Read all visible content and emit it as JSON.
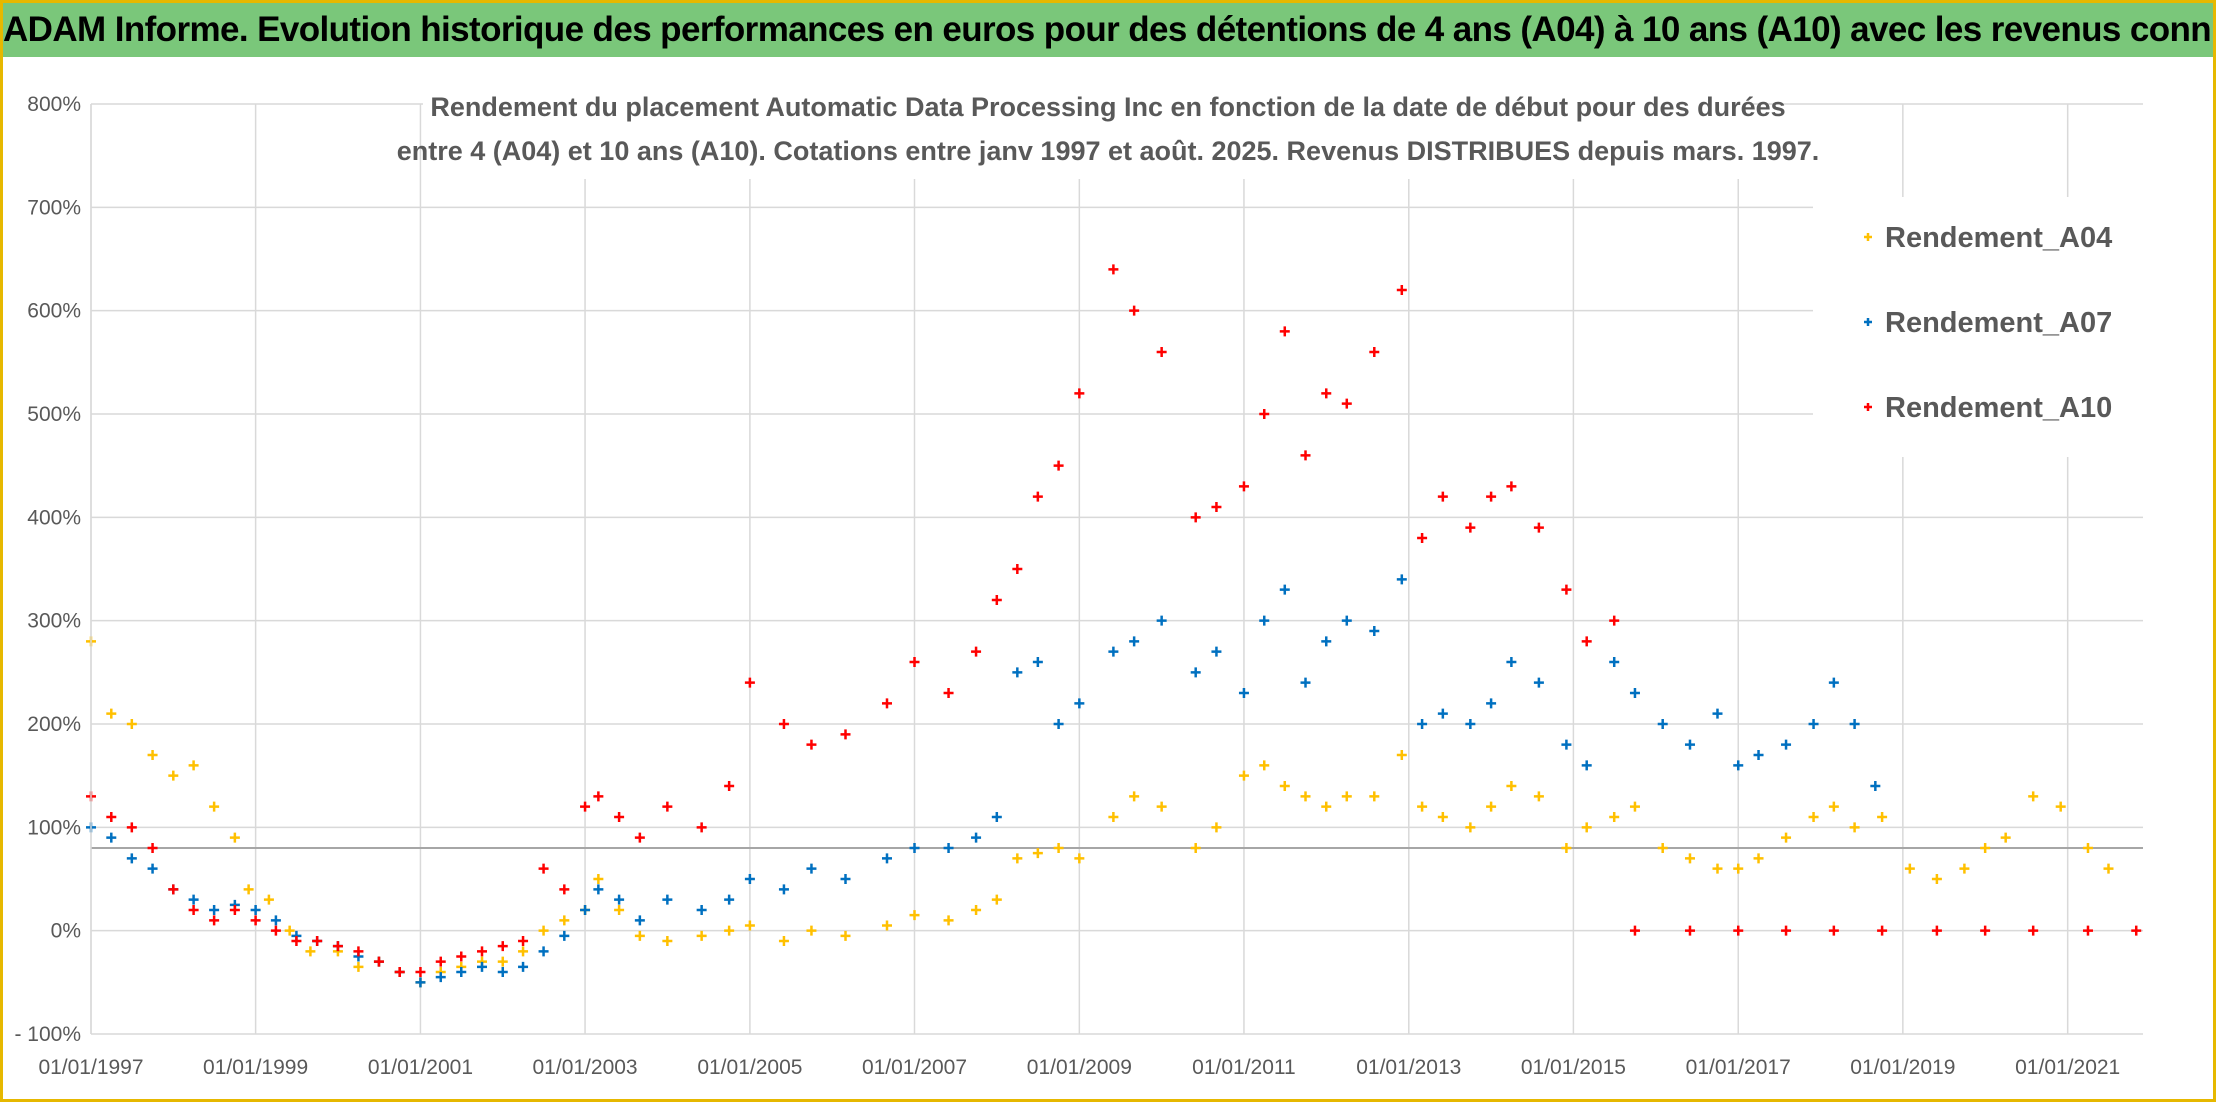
{
  "banner": {
    "title": "ADAM Informe. Evolution historique des performances en euros pour des détentions de 4 ans (A04) à 10 ans (A10) avec les revenus connus distribués"
  },
  "chart_data": {
    "type": "scatter",
    "title_lines": [
      "Rendement du placement Automatic Data Processing Inc en fonction de la date de début pour des durées",
      "entre 4 (A04) et 10 ans (A10). Cotations entre janv 1997 et août. 2025. Revenus DISTRIBUES depuis mars. 1997."
    ],
    "xlabel": "",
    "ylabel": "",
    "x_axis": {
      "type": "date",
      "min": "1997-01-01",
      "max": "2021-12-01",
      "ticks": [
        "01/01/1997",
        "01/01/1999",
        "01/01/2001",
        "01/01/2003",
        "01/01/2005",
        "01/01/2007",
        "01/01/2009",
        "01/01/2011",
        "01/01/2013",
        "01/01/2015",
        "01/01/2017",
        "01/01/2019",
        "01/01/2021"
      ]
    },
    "y_axis": {
      "min": -100,
      "max": 800,
      "unit": "%",
      "ticks": [
        -100,
        0,
        100,
        200,
        300,
        400,
        500,
        600,
        700,
        800
      ],
      "tick_labels": [
        "- 100%",
        "0%",
        "100%",
        "200%",
        "300%",
        "400%",
        "500%",
        "600%",
        "700%",
        "800%"
      ]
    },
    "reference_line": {
      "y": 80,
      "color": "#a6a6a6"
    },
    "grid": true,
    "legend_position": "top-right",
    "marker": "plus",
    "series": [
      {
        "name": "Rendement_A04",
        "color": "#ffc000",
        "points": [
          [
            "1997-01-01",
            280
          ],
          [
            "1997-04-01",
            210
          ],
          [
            "1997-07-01",
            200
          ],
          [
            "1997-10-01",
            170
          ],
          [
            "1998-01-01",
            150
          ],
          [
            "1998-04-01",
            160
          ],
          [
            "1998-07-01",
            120
          ],
          [
            "1998-10-01",
            90
          ],
          [
            "1998-12-01",
            40
          ],
          [
            "1999-03-01",
            30
          ],
          [
            "1999-06-01",
            0
          ],
          [
            "1999-09-01",
            -20
          ],
          [
            "2000-01-01",
            -20
          ],
          [
            "2000-04-01",
            -35
          ],
          [
            "2000-07-01",
            -30
          ],
          [
            "2000-10-01",
            -40
          ],
          [
            "2001-01-01",
            -50
          ],
          [
            "2001-04-01",
            -40
          ],
          [
            "2001-07-01",
            -35
          ],
          [
            "2001-10-01",
            -30
          ],
          [
            "2002-01-01",
            -30
          ],
          [
            "2002-04-01",
            -20
          ],
          [
            "2002-07-01",
            0
          ],
          [
            "2002-10-01",
            10
          ],
          [
            "2003-01-01",
            20
          ],
          [
            "2003-03-01",
            50
          ],
          [
            "2003-06-01",
            20
          ],
          [
            "2003-09-01",
            -5
          ],
          [
            "2004-01-01",
            -10
          ],
          [
            "2004-06-01",
            -5
          ],
          [
            "2004-10-01",
            0
          ],
          [
            "2005-01-01",
            5
          ],
          [
            "2005-06-01",
            -10
          ],
          [
            "2005-10-01",
            0
          ],
          [
            "2006-03-01",
            -5
          ],
          [
            "2006-09-01",
            5
          ],
          [
            "2007-01-01",
            15
          ],
          [
            "2007-06-01",
            10
          ],
          [
            "2007-10-01",
            20
          ],
          [
            "2008-01-01",
            30
          ],
          [
            "2008-04-01",
            70
          ],
          [
            "2008-07-01",
            75
          ],
          [
            "2008-10-01",
            80
          ],
          [
            "2009-01-01",
            70
          ],
          [
            "2009-06-01",
            110
          ],
          [
            "2009-09-01",
            130
          ],
          [
            "2010-01-01",
            120
          ],
          [
            "2010-06-01",
            80
          ],
          [
            "2010-09-01",
            100
          ],
          [
            "2011-01-01",
            150
          ],
          [
            "2011-04-01",
            160
          ],
          [
            "2011-07-01",
            140
          ],
          [
            "2011-10-01",
            130
          ],
          [
            "2012-01-01",
            120
          ],
          [
            "2012-04-01",
            130
          ],
          [
            "2012-08-01",
            130
          ],
          [
            "2012-12-01",
            170
          ],
          [
            "2013-03-01",
            120
          ],
          [
            "2013-06-01",
            110
          ],
          [
            "2013-10-01",
            100
          ],
          [
            "2014-01-01",
            120
          ],
          [
            "2014-04-01",
            140
          ],
          [
            "2014-08-01",
            130
          ],
          [
            "2014-12-01",
            80
          ],
          [
            "2015-03-01",
            100
          ],
          [
            "2015-07-01",
            110
          ],
          [
            "2015-10-01",
            120
          ],
          [
            "2016-02-01",
            80
          ],
          [
            "2016-06-01",
            70
          ],
          [
            "2016-10-01",
            60
          ],
          [
            "2017-01-01",
            60
          ],
          [
            "2017-04-01",
            70
          ],
          [
            "2017-08-01",
            90
          ],
          [
            "2017-12-01",
            110
          ],
          [
            "2018-03-01",
            120
          ],
          [
            "2018-06-01",
            100
          ],
          [
            "2018-10-01",
            110
          ],
          [
            "2019-02-01",
            60
          ],
          [
            "2019-06-01",
            50
          ],
          [
            "2019-10-01",
            60
          ],
          [
            "2020-01-01",
            80
          ],
          [
            "2020-04-01",
            90
          ],
          [
            "2020-08-01",
            130
          ],
          [
            "2020-12-01",
            120
          ],
          [
            "2021-04-01",
            80
          ],
          [
            "2021-07-01",
            60
          ]
        ]
      },
      {
        "name": "Rendement_A07",
        "color": "#0070c0",
        "points": [
          [
            "1997-01-01",
            100
          ],
          [
            "1997-04-01",
            90
          ],
          [
            "1997-07-01",
            70
          ],
          [
            "1997-10-01",
            60
          ],
          [
            "1998-01-01",
            40
          ],
          [
            "1998-04-01",
            30
          ],
          [
            "1998-07-01",
            20
          ],
          [
            "1998-10-01",
            25
          ],
          [
            "1999-01-01",
            20
          ],
          [
            "1999-04-01",
            10
          ],
          [
            "1999-07-01",
            -5
          ],
          [
            "1999-10-01",
            -10
          ],
          [
            "2000-01-01",
            -15
          ],
          [
            "2000-04-01",
            -25
          ],
          [
            "2000-07-01",
            -30
          ],
          [
            "2000-10-01",
            -40
          ],
          [
            "2001-01-01",
            -50
          ],
          [
            "2001-04-01",
            -45
          ],
          [
            "2001-07-01",
            -40
          ],
          [
            "2001-10-01",
            -35
          ],
          [
            "2002-01-01",
            -40
          ],
          [
            "2002-04-01",
            -35
          ],
          [
            "2002-07-01",
            -20
          ],
          [
            "2002-10-01",
            -5
          ],
          [
            "2003-01-01",
            20
          ],
          [
            "2003-03-01",
            40
          ],
          [
            "2003-06-01",
            30
          ],
          [
            "2003-09-01",
            10
          ],
          [
            "2004-01-01",
            30
          ],
          [
            "2004-06-01",
            20
          ],
          [
            "2004-10-01",
            30
          ],
          [
            "2005-01-01",
            50
          ],
          [
            "2005-06-01",
            40
          ],
          [
            "2005-10-01",
            60
          ],
          [
            "2006-03-01",
            50
          ],
          [
            "2006-09-01",
            70
          ],
          [
            "2007-01-01",
            80
          ],
          [
            "2007-06-01",
            80
          ],
          [
            "2007-10-01",
            90
          ],
          [
            "2008-01-01",
            110
          ],
          [
            "2008-04-01",
            250
          ],
          [
            "2008-07-01",
            260
          ],
          [
            "2008-10-01",
            200
          ],
          [
            "2009-01-01",
            220
          ],
          [
            "2009-06-01",
            270
          ],
          [
            "2009-09-01",
            280
          ],
          [
            "2010-01-01",
            300
          ],
          [
            "2010-06-01",
            250
          ],
          [
            "2010-09-01",
            270
          ],
          [
            "2011-01-01",
            230
          ],
          [
            "2011-04-01",
            300
          ],
          [
            "2011-07-01",
            330
          ],
          [
            "2011-10-01",
            240
          ],
          [
            "2012-01-01",
            280
          ],
          [
            "2012-04-01",
            300
          ],
          [
            "2012-08-01",
            290
          ],
          [
            "2012-12-01",
            340
          ],
          [
            "2013-03-01",
            200
          ],
          [
            "2013-06-01",
            210
          ],
          [
            "2013-10-01",
            200
          ],
          [
            "2014-01-01",
            220
          ],
          [
            "2014-04-01",
            260
          ],
          [
            "2014-08-01",
            240
          ],
          [
            "2014-12-01",
            180
          ],
          [
            "2015-03-01",
            160
          ],
          [
            "2015-07-01",
            260
          ],
          [
            "2015-10-01",
            230
          ],
          [
            "2016-02-01",
            200
          ],
          [
            "2016-06-01",
            180
          ],
          [
            "2016-10-01",
            210
          ],
          [
            "2017-01-01",
            160
          ],
          [
            "2017-04-01",
            170
          ],
          [
            "2017-08-01",
            180
          ],
          [
            "2017-12-01",
            200
          ],
          [
            "2018-03-01",
            240
          ],
          [
            "2018-06-01",
            200
          ],
          [
            "2018-09-01",
            140
          ]
        ]
      },
      {
        "name": "Rendement_A10",
        "color": "#ff0000",
        "points": [
          [
            "1997-01-01",
            130
          ],
          [
            "1997-04-01",
            110
          ],
          [
            "1997-07-01",
            100
          ],
          [
            "1997-10-01",
            80
          ],
          [
            "1998-01-01",
            40
          ],
          [
            "1998-04-01",
            20
          ],
          [
            "1998-07-01",
            10
          ],
          [
            "1998-10-01",
            20
          ],
          [
            "1999-01-01",
            10
          ],
          [
            "1999-04-01",
            0
          ],
          [
            "1999-07-01",
            -10
          ],
          [
            "1999-10-01",
            -10
          ],
          [
            "2000-01-01",
            -15
          ],
          [
            "2000-04-01",
            -20
          ],
          [
            "2000-07-01",
            -30
          ],
          [
            "2000-10-01",
            -40
          ],
          [
            "2001-01-01",
            -40
          ],
          [
            "2001-04-01",
            -30
          ],
          [
            "2001-07-01",
            -25
          ],
          [
            "2001-10-01",
            -20
          ],
          [
            "2002-01-01",
            -15
          ],
          [
            "2002-04-01",
            -10
          ],
          [
            "2002-07-01",
            60
          ],
          [
            "2002-10-01",
            40
          ],
          [
            "2003-01-01",
            120
          ],
          [
            "2003-03-01",
            130
          ],
          [
            "2003-06-01",
            110
          ],
          [
            "2003-09-01",
            90
          ],
          [
            "2004-01-01",
            120
          ],
          [
            "2004-06-01",
            100
          ],
          [
            "2004-10-01",
            140
          ],
          [
            "2005-01-01",
            240
          ],
          [
            "2005-06-01",
            200
          ],
          [
            "2005-10-01",
            180
          ],
          [
            "2006-03-01",
            190
          ],
          [
            "2006-09-01",
            220
          ],
          [
            "2007-01-01",
            260
          ],
          [
            "2007-06-01",
            230
          ],
          [
            "2007-10-01",
            270
          ],
          [
            "2008-01-01",
            320
          ],
          [
            "2008-04-01",
            350
          ],
          [
            "2008-07-01",
            420
          ],
          [
            "2008-10-01",
            450
          ],
          [
            "2009-01-01",
            520
          ],
          [
            "2009-06-01",
            640
          ],
          [
            "2009-09-01",
            600
          ],
          [
            "2010-01-01",
            560
          ],
          [
            "2010-06-01",
            400
          ],
          [
            "2010-09-01",
            410
          ],
          [
            "2011-01-01",
            430
          ],
          [
            "2011-04-01",
            500
          ],
          [
            "2011-07-01",
            580
          ],
          [
            "2011-10-01",
            460
          ],
          [
            "2012-01-01",
            520
          ],
          [
            "2012-04-01",
            510
          ],
          [
            "2012-08-01",
            560
          ],
          [
            "2012-12-01",
            620
          ],
          [
            "2013-03-01",
            380
          ],
          [
            "2013-06-01",
            420
          ],
          [
            "2013-10-01",
            390
          ],
          [
            "2014-01-01",
            420
          ],
          [
            "2014-04-01",
            430
          ],
          [
            "2014-08-01",
            390
          ],
          [
            "2014-12-01",
            330
          ],
          [
            "2015-03-01",
            280
          ],
          [
            "2015-07-01",
            300
          ],
          [
            "2015-10-01",
            0
          ],
          [
            "2016-06-01",
            0
          ],
          [
            "2017-01-01",
            0
          ],
          [
            "2017-08-01",
            0
          ],
          [
            "2018-03-01",
            0
          ],
          [
            "2018-10-01",
            0
          ],
          [
            "2019-06-01",
            0
          ],
          [
            "2020-01-01",
            0
          ],
          [
            "2020-08-01",
            0
          ],
          [
            "2021-04-01",
            0
          ],
          [
            "2021-11-01",
            0
          ]
        ]
      }
    ]
  }
}
